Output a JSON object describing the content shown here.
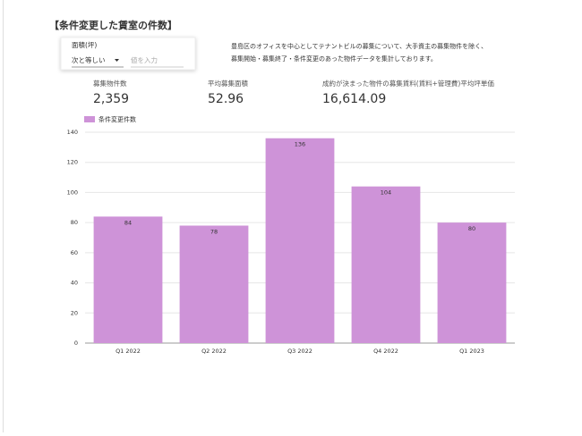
{
  "header": {
    "title": "【条件変更した賃室の件数】"
  },
  "filter": {
    "label": "面積(坪)",
    "operator": "次と等しい",
    "placeholder": "値を入力"
  },
  "description": {
    "lines": [
      "豊島区のオフィスを中心としてテナントビルの募集について、大手資主の募集物件を除く、",
      "募集開始・募集終了・条件変更のあった物件データを集計しております。"
    ]
  },
  "scorecards": [
    {
      "label": "募集物件数",
      "value": "2,359"
    },
    {
      "label": "平均募集面積",
      "value": "52.96"
    },
    {
      "label": "成約が決まった物件の募集賃料(賃料+管理費)平均坪単価",
      "value": "16,614.09"
    }
  ],
  "chart_data": {
    "type": "bar",
    "categories": [
      "Q1 2022",
      "Q2 2022",
      "Q3 2022",
      "Q4 2022",
      "Q1 2023"
    ],
    "series": [
      {
        "name": "条件変更件数",
        "color": "#ce93d8",
        "values": [
          84,
          78,
          136,
          104,
          80
        ]
      }
    ],
    "ylim": [
      0,
      140
    ],
    "yticks": [
      0,
      20,
      40,
      60,
      80,
      100,
      120,
      140
    ],
    "grid": true
  }
}
